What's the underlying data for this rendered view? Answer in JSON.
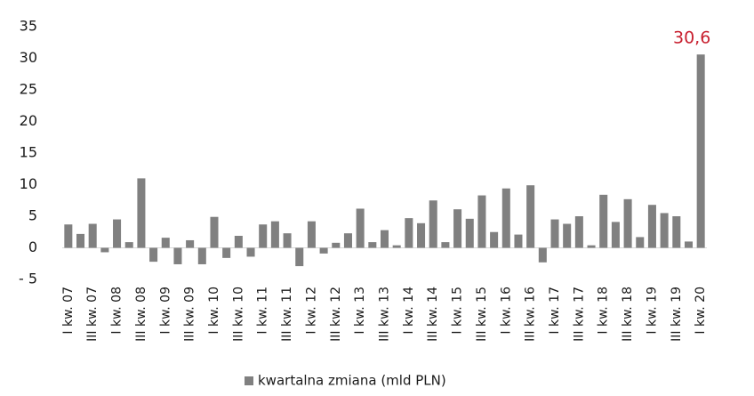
{
  "chart_data": {
    "type": "bar",
    "categories": [
      "I kw. 07",
      null,
      "III kw. 07",
      null,
      "I kw. 08",
      null,
      "III kw. 08",
      null,
      "I kw. 09",
      null,
      "III kw. 09",
      null,
      "I kw. 10",
      null,
      "III kw. 10",
      null,
      "I kw. 11",
      null,
      "III kw. 11",
      null,
      "I kw. 12",
      null,
      "III kw. 12",
      null,
      "I kw. 13",
      null,
      "III kw. 13",
      null,
      "I kw. 14",
      null,
      "III kw. 14",
      null,
      "I kw. 15",
      null,
      "III kw. 15",
      null,
      "I kw. 16",
      null,
      "III kw. 16",
      null,
      "I kw. 17",
      null,
      "III kw. 17",
      null,
      "I kw. 18",
      null,
      "III kw. 18",
      null,
      "I kw. 19",
      null,
      "III kw. 19",
      null,
      "I kw. 20"
    ],
    "series": [
      {
        "name": "kwartalna zmiana (mld PLN)",
        "color": "#808080",
        "values": [
          3.7,
          2.2,
          3.8,
          -0.7,
          4.5,
          0.9,
          11.0,
          -2.2,
          1.6,
          -2.6,
          1.2,
          -2.6,
          4.9,
          -1.6,
          1.9,
          -1.4,
          3.7,
          4.2,
          2.3,
          -2.9,
          4.2,
          -0.9,
          0.8,
          2.3,
          6.2,
          0.9,
          2.8,
          0.4,
          4.7,
          3.9,
          7.5,
          0.9,
          6.1,
          4.6,
          8.3,
          2.5,
          9.4,
          2.1,
          9.9,
          -2.3,
          4.5,
          3.8,
          5.0,
          0.4,
          8.4,
          4.1,
          7.7,
          1.7,
          6.8,
          5.5,
          5.0,
          1.0,
          30.6
        ],
        "value_labels": [
          null,
          null,
          null,
          null,
          null,
          null,
          null,
          null,
          null,
          null,
          null,
          null,
          null,
          null,
          null,
          null,
          null,
          null,
          null,
          null,
          null,
          null,
          null,
          null,
          null,
          null,
          null,
          null,
          null,
          null,
          null,
          null,
          null,
          null,
          null,
          null,
          null,
          null,
          null,
          null,
          null,
          null,
          null,
          null,
          null,
          null,
          null,
          null,
          null,
          null,
          null,
          null,
          "30,6"
        ],
        "value_label_color": "#c8202f"
      }
    ],
    "ylim": [
      -5,
      35
    ],
    "yticks": [
      {
        "value": -5,
        "label": "- 5"
      },
      0,
      5,
      10,
      15,
      20,
      25,
      30,
      35
    ],
    "grid": false,
    "legend": "bottom"
  }
}
